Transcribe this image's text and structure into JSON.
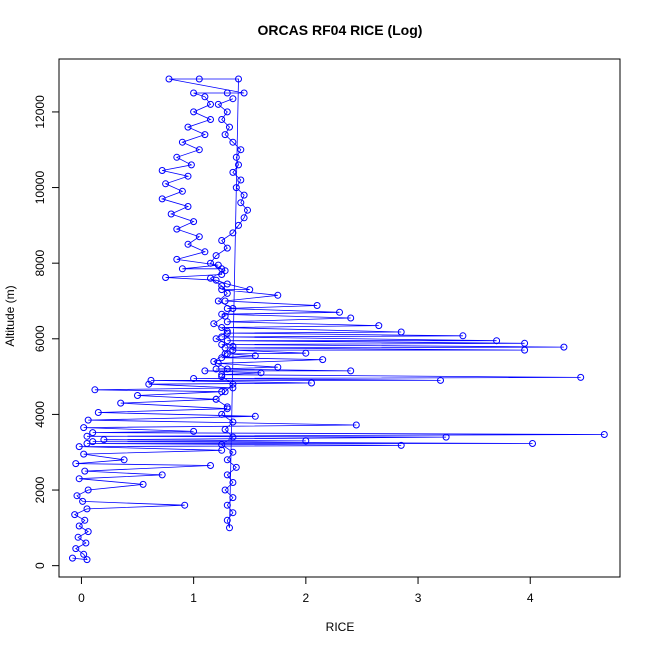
{
  "chart_data": {
    "type": "scatter",
    "title": "ORCAS RF04 RICE (Log)",
    "xlabel": "RICE",
    "ylabel": "Altitude (m)",
    "xlim": [
      -0.2,
      4.8
    ],
    "ylim": [
      -300,
      13400
    ],
    "x_ticks": [
      0,
      1,
      2,
      3,
      4
    ],
    "x_tick_labels": [
      "0",
      "1",
      "2",
      "3",
      "4"
    ],
    "y_ticks": [
      0,
      2000,
      4000,
      6000,
      8000,
      10000,
      12000
    ],
    "y_tick_labels": [
      "0",
      "2000",
      "4000",
      "6000",
      "8000",
      "10000",
      "12000"
    ],
    "grid": false,
    "legend": "none",
    "series": [
      {
        "color": "#0000ff",
        "marker": "open-circle",
        "line": true,
        "points": [
          [
            -0.08,
            200
          ],
          [
            0.05,
            160
          ],
          [
            0.02,
            300
          ],
          [
            -0.05,
            450
          ],
          [
            0.04,
            600
          ],
          [
            -0.03,
            750
          ],
          [
            0.06,
            900
          ],
          [
            -0.02,
            1050
          ],
          [
            0.03,
            1200
          ],
          [
            -0.06,
            1350
          ],
          [
            0.05,
            1500
          ],
          [
            0.92,
            1600
          ],
          [
            0.01,
            1700
          ],
          [
            -0.04,
            1850
          ],
          [
            0.06,
            2000
          ],
          [
            0.55,
            2150
          ],
          [
            -0.02,
            2300
          ],
          [
            0.72,
            2400
          ],
          [
            0.03,
            2500
          ],
          [
            1.15,
            2650
          ],
          [
            -0.05,
            2700
          ],
          [
            0.38,
            2800
          ],
          [
            0.02,
            2950
          ],
          [
            1.25,
            3050
          ],
          [
            -0.02,
            3150
          ],
          [
            2.85,
            3180
          ],
          [
            0.05,
            3230
          ],
          [
            4.02,
            3230
          ],
          [
            0.1,
            3280
          ],
          [
            2.0,
            3300
          ],
          [
            0.2,
            3330
          ],
          [
            3.25,
            3400
          ],
          [
            0.05,
            3420
          ],
          [
            4.66,
            3470
          ],
          [
            0.1,
            3520
          ],
          [
            1.0,
            3550
          ],
          [
            0.02,
            3650
          ],
          [
            2.45,
            3720
          ],
          [
            0.06,
            3850
          ],
          [
            1.55,
            3950
          ],
          [
            0.15,
            4050
          ],
          [
            1.3,
            4150
          ],
          [
            0.35,
            4300
          ],
          [
            1.2,
            4400
          ],
          [
            0.5,
            4500
          ],
          [
            1.25,
            4600
          ],
          [
            0.12,
            4650
          ],
          [
            1.35,
            4700
          ],
          [
            0.6,
            4800
          ],
          [
            2.05,
            4830
          ],
          [
            0.62,
            4900
          ],
          [
            3.2,
            4900
          ],
          [
            1.0,
            4950
          ],
          [
            4.45,
            4980
          ],
          [
            1.25,
            5050
          ],
          [
            1.6,
            5100
          ],
          [
            1.1,
            5150
          ],
          [
            2.4,
            5150
          ],
          [
            1.2,
            5200
          ],
          [
            1.75,
            5250
          ],
          [
            1.22,
            5350
          ],
          [
            2.15,
            5450
          ],
          [
            1.25,
            5500
          ],
          [
            1.55,
            5550
          ],
          [
            1.3,
            5600
          ],
          [
            2.0,
            5620
          ],
          [
            1.35,
            5700
          ],
          [
            3.95,
            5700
          ],
          [
            1.28,
            5760
          ],
          [
            4.3,
            5780
          ],
          [
            1.25,
            5850
          ],
          [
            3.95,
            5880
          ],
          [
            1.3,
            5950
          ],
          [
            3.7,
            5950
          ],
          [
            1.25,
            6050
          ],
          [
            3.4,
            6080
          ],
          [
            1.3,
            6150
          ],
          [
            2.85,
            6180
          ],
          [
            1.25,
            6300
          ],
          [
            2.65,
            6350
          ],
          [
            1.3,
            6450
          ],
          [
            2.4,
            6550
          ],
          [
            1.25,
            6650
          ],
          [
            2.3,
            6700
          ],
          [
            1.3,
            6800
          ],
          [
            2.1,
            6880
          ],
          [
            1.28,
            7000
          ],
          [
            1.75,
            7150
          ],
          [
            1.25,
            7300
          ],
          [
            1.5,
            7300
          ],
          [
            1.3,
            7450
          ],
          [
            1.2,
            7550
          ],
          [
            0.75,
            7620
          ],
          [
            1.25,
            7700
          ],
          [
            1.25,
            7850
          ],
          [
            0.9,
            7850
          ],
          [
            1.22,
            7950
          ],
          [
            0.85,
            8100
          ],
          [
            1.1,
            8300
          ],
          [
            0.95,
            8500
          ],
          [
            1.05,
            8700
          ],
          [
            0.85,
            8900
          ],
          [
            1.0,
            9100
          ],
          [
            0.8,
            9300
          ],
          [
            0.95,
            9500
          ],
          [
            0.72,
            9700
          ],
          [
            0.9,
            9900
          ],
          [
            0.75,
            10100
          ],
          [
            0.95,
            10300
          ],
          [
            0.72,
            10450
          ],
          [
            0.98,
            10600
          ],
          [
            0.85,
            10800
          ],
          [
            1.05,
            11000
          ],
          [
            0.9,
            11200
          ],
          [
            1.1,
            11400
          ],
          [
            0.95,
            11600
          ],
          [
            1.15,
            11800
          ],
          [
            1.0,
            12000
          ],
          [
            1.15,
            12200
          ],
          [
            1.1,
            12400
          ],
          [
            1.0,
            12500
          ],
          [
            1.3,
            12500
          ],
          [
            1.45,
            12500
          ],
          [
            0.78,
            12870
          ],
          [
            1.05,
            12870
          ],
          [
            1.4,
            12870
          ],
          [
            1.32,
            1000
          ],
          [
            1.3,
            1200
          ],
          [
            1.35,
            1400
          ],
          [
            1.3,
            1600
          ],
          [
            1.35,
            1800
          ],
          [
            1.28,
            2000
          ],
          [
            1.35,
            2200
          ],
          [
            1.3,
            2400
          ],
          [
            1.38,
            2600
          ],
          [
            1.3,
            2800
          ],
          [
            1.35,
            3000
          ],
          [
            1.25,
            3200
          ],
          [
            1.35,
            3400
          ],
          [
            1.28,
            3600
          ],
          [
            1.35,
            3800
          ],
          [
            1.25,
            4000
          ],
          [
            1.3,
            4200
          ],
          [
            1.2,
            4400
          ],
          [
            1.28,
            4600
          ],
          [
            1.35,
            4800
          ],
          [
            1.25,
            5000
          ],
          [
            1.3,
            5200
          ],
          [
            1.18,
            5400
          ],
          [
            1.28,
            5600
          ],
          [
            1.35,
            5800
          ],
          [
            1.2,
            6000
          ],
          [
            1.3,
            6200
          ],
          [
            1.18,
            6400
          ],
          [
            1.28,
            6600
          ],
          [
            1.35,
            6800
          ],
          [
            1.22,
            7000
          ],
          [
            1.3,
            7200
          ],
          [
            1.25,
            7400
          ],
          [
            1.15,
            7600
          ],
          [
            1.28,
            7800
          ],
          [
            1.15,
            8000
          ],
          [
            1.2,
            8200
          ],
          [
            1.3,
            8400
          ],
          [
            1.25,
            8600
          ],
          [
            1.35,
            8800
          ],
          [
            1.4,
            9000
          ],
          [
            1.45,
            9200
          ],
          [
            1.48,
            9400
          ],
          [
            1.42,
            9600
          ],
          [
            1.45,
            9800
          ],
          [
            1.38,
            10000
          ],
          [
            1.42,
            10200
          ],
          [
            1.35,
            10400
          ],
          [
            1.4,
            10600
          ],
          [
            1.38,
            10800
          ],
          [
            1.42,
            11000
          ],
          [
            1.35,
            11200
          ],
          [
            1.28,
            11400
          ],
          [
            1.32,
            11600
          ],
          [
            1.25,
            11800
          ],
          [
            1.3,
            12000
          ],
          [
            1.22,
            12200
          ],
          [
            1.35,
            12350
          ]
        ]
      }
    ]
  }
}
